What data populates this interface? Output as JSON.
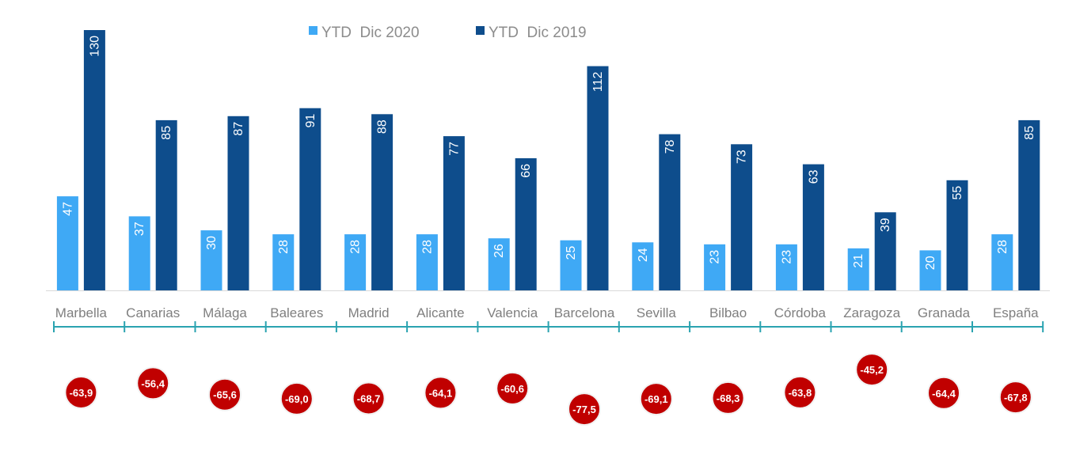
{
  "chart_data": {
    "type": "bar",
    "categories": [
      "Marbella",
      "Canarias",
      "Málaga",
      "Baleares",
      "Madrid",
      "Alicante",
      "Valencia",
      "Barcelona",
      "Sevilla",
      "Bilbao",
      "Córdoba",
      "Zaragoza",
      "Granada",
      "España"
    ],
    "series": [
      {
        "name": "YTD  Dic 2020",
        "values": [
          47,
          37,
          30,
          28,
          28,
          28,
          26,
          25,
          24,
          23,
          23,
          21,
          20,
          28
        ],
        "color": "#3fa9f5"
      },
      {
        "name": "YTD  Dic 2019",
        "values": [
          130,
          85,
          87,
          91,
          88,
          77,
          66,
          112,
          78,
          73,
          63,
          39,
          55,
          85
        ],
        "color": "#0e4d8c"
      }
    ],
    "change_pct": [
      "-63,9",
      "-56,4",
      "-65,6",
      "-69,0",
      "-68,7",
      "-64,1",
      "-60,6",
      "-77,5",
      "-69,1",
      "-68,3",
      "-63,8",
      "-45,2",
      "-64,4",
      "-67,8"
    ],
    "change_values": [
      -63.9,
      -56.4,
      -65.6,
      -69.0,
      -68.7,
      -64.1,
      -60.6,
      -77.5,
      -69.1,
      -68.3,
      -63.8,
      -45.2,
      -64.4,
      -67.8
    ],
    "change_color": "#c00000",
    "axis_color": "#2aa3b0",
    "legend_position": "top-center",
    "ylim": [
      0,
      130
    ],
    "grid": false
  }
}
